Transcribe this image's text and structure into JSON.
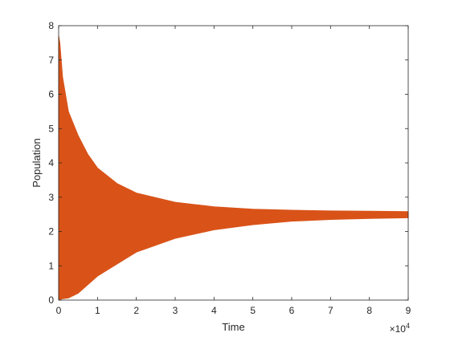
{
  "chart_data": {
    "type": "area",
    "xlabel": "Time",
    "ylabel": "Population",
    "x_multiplier_label": "×10",
    "x_multiplier_exponent": "4",
    "x_multiplier_value": 10000,
    "xlim": [
      0,
      90000
    ],
    "ylim": [
      0,
      8
    ],
    "xticks": [
      0,
      10000,
      20000,
      30000,
      40000,
      50000,
      60000,
      70000,
      80000,
      90000
    ],
    "xtick_labels": [
      "0",
      "1",
      "2",
      "3",
      "4",
      "5",
      "6",
      "7",
      "8",
      "9"
    ],
    "yticks": [
      0,
      1,
      2,
      3,
      4,
      5,
      6,
      7,
      8
    ],
    "ytick_labels": [
      "0",
      "1",
      "2",
      "3",
      "4",
      "5",
      "6",
      "7",
      "8"
    ],
    "grid": false,
    "series": [
      {
        "color": "#D95319",
        "x": [
          0,
          300,
          1000,
          2500,
          5000,
          7500,
          10000,
          15000,
          20000,
          30000,
          40000,
          50000,
          60000,
          70000,
          80000,
          90000
        ],
        "upper": [
          7.7,
          7.5,
          6.5,
          5.5,
          4.8,
          4.25,
          3.85,
          3.4,
          3.12,
          2.85,
          2.72,
          2.65,
          2.62,
          2.6,
          2.59,
          2.58
        ],
        "lower": [
          0.02,
          0.02,
          0.04,
          0.06,
          0.2,
          0.45,
          0.7,
          1.05,
          1.4,
          1.8,
          2.05,
          2.2,
          2.3,
          2.35,
          2.38,
          2.4
        ]
      }
    ]
  }
}
